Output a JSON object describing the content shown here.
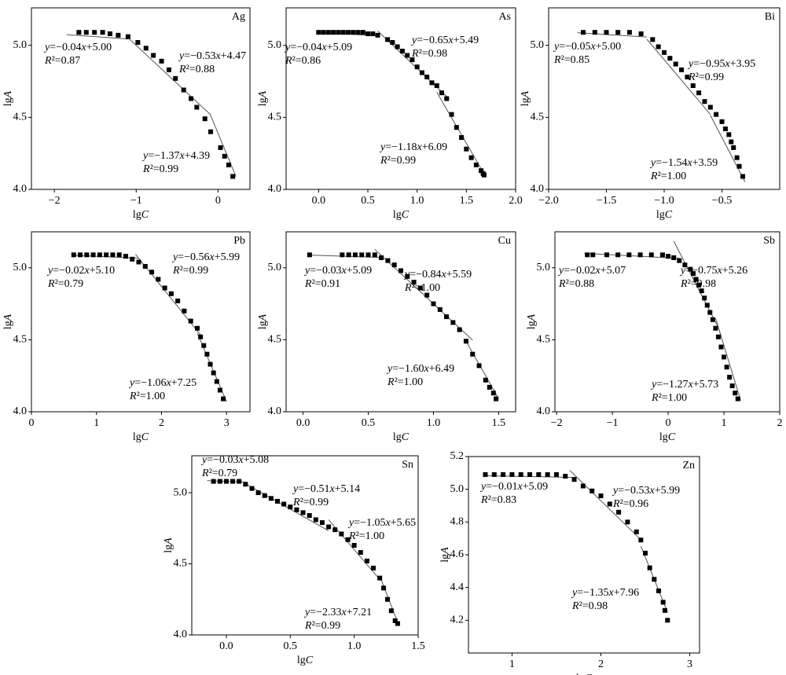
{
  "chart_data": [
    {
      "type": "scatter",
      "title": "Ag",
      "x_label": "lgC",
      "y_label": "lgA",
      "xlim": [
        -2.28,
        0.39
      ],
      "ylim": [
        4.0,
        5.26
      ],
      "xticks": [
        {
          "value": -2,
          "label": "−2"
        },
        {
          "value": -1,
          "label": "−1"
        },
        0
      ],
      "yticks": [
        {
          "value": 4,
          "label": "4.0"
        },
        4.5,
        {
          "value": 5,
          "label": "5.0"
        }
      ],
      "color": "#000000",
      "x": [
        -1.7,
        -1.61,
        -1.51,
        -1.41,
        -1.32,
        -1.22,
        -1.1,
        -0.98,
        -0.88,
        -0.79,
        -0.69,
        -0.6,
        -0.52,
        -0.42,
        -0.33,
        -0.26,
        -0.16,
        -0.09,
        0.03,
        0.08,
        0.13,
        0.18
      ],
      "values": [
        5.09,
        5.09,
        5.09,
        5.09,
        5.08,
        5.07,
        5.06,
        5.02,
        4.98,
        4.93,
        4.89,
        4.83,
        4.77,
        4.69,
        4.63,
        4.57,
        4.49,
        4.4,
        4.29,
        4.23,
        4.17,
        4.09
      ],
      "fits": [
        {
          "label": "y=−0.04x+5.00",
          "r2_label": "R²=0.87",
          "slope": -0.04,
          "intercept": 5.0,
          "xrange": [
            -1.85,
            -1.1
          ]
        },
        {
          "label": "y=−0.53x+4.47",
          "r2_label": "R²=0.88",
          "slope": -0.53,
          "intercept": 4.47,
          "xrange": [
            -1.1,
            -0.1
          ]
        },
        {
          "label": "y=−1.37x+4.39",
          "r2_label": "R²=0.99",
          "slope": -1.37,
          "intercept": 4.39,
          "xrange": [
            -0.1,
            0.22
          ]
        }
      ]
    },
    {
      "type": "scatter",
      "title": "As",
      "x_label": "lgC",
      "y_label": "lgA",
      "xlim": [
        -0.33,
        2.0
      ],
      "ylim": [
        4.0,
        5.26
      ],
      "xticks": [
        {
          "value": 0,
          "label": "0.0"
        },
        0.5,
        {
          "value": 1,
          "label": "1.0"
        },
        1.5,
        {
          "value": 2,
          "label": "2.0"
        }
      ],
      "yticks": [
        {
          "value": 4,
          "label": "4.0"
        },
        4.5,
        {
          "value": 5,
          "label": "5.0"
        }
      ],
      "color": "#000000",
      "x": [
        0.0,
        0.05,
        0.1,
        0.15,
        0.2,
        0.25,
        0.3,
        0.35,
        0.4,
        0.45,
        0.5,
        0.55,
        0.6,
        0.7,
        0.75,
        0.8,
        0.85,
        0.9,
        0.95,
        1.0,
        1.05,
        1.1,
        1.15,
        1.2,
        1.25,
        1.3,
        1.35,
        1.4,
        1.45,
        1.5,
        1.55,
        1.6,
        1.65,
        1.67,
        1.68
      ],
      "values": [
        5.09,
        5.09,
        5.09,
        5.09,
        5.09,
        5.09,
        5.09,
        5.09,
        5.09,
        5.09,
        5.08,
        5.08,
        5.07,
        5.04,
        5.02,
        4.99,
        4.96,
        4.93,
        4.9,
        4.85,
        4.81,
        4.78,
        4.74,
        4.72,
        4.67,
        4.63,
        4.52,
        4.43,
        4.36,
        4.28,
        4.22,
        4.17,
        4.13,
        4.11,
        4.1
      ],
      "fits": [
        {
          "label": "y=−0.04x+5.09",
          "r2_label": "R²=0.86",
          "slope": -0.04,
          "intercept": 5.09,
          "xrange": [
            0,
            0.6
          ]
        },
        {
          "label": "y=−0.65x+5.49",
          "r2_label": "R²=0.98",
          "slope": -0.65,
          "intercept": 5.49,
          "xrange": [
            0.6,
            1.3
          ]
        },
        {
          "label": "y=−1.18x+6.09",
          "r2_label": "R²=0.99",
          "slope": -1.18,
          "intercept": 6.09,
          "xrange": [
            1.2,
            1.7
          ]
        }
      ]
    },
    {
      "type": "scatter",
      "title": "Bi",
      "x_label": "lgC",
      "y_label": "lgA",
      "xlim": [
        -2.0,
        0.0
      ],
      "ylim": [
        4.0,
        5.26
      ],
      "xticks": [
        {
          "value": -2,
          "label": "−2.0"
        },
        {
          "value": -1.5,
          "label": "−1.5"
        },
        {
          "value": -1,
          "label": "−1.0"
        },
        {
          "value": -0.5,
          "label": "−0.5"
        }
      ],
      "yticks": [
        {
          "value": 4,
          "label": "4.0"
        },
        4.5,
        {
          "value": 5,
          "label": "5.0"
        }
      ],
      "color": "#000000",
      "x": [
        -1.7,
        -1.6,
        -1.5,
        -1.4,
        -1.3,
        -1.2,
        -1.1,
        -1.05,
        -1.0,
        -0.95,
        -0.9,
        -0.85,
        -0.8,
        -0.75,
        -0.7,
        -0.65,
        -0.6,
        -0.55,
        -0.5,
        -0.47,
        -0.44,
        -0.42,
        -0.4,
        -0.37,
        -0.35,
        -0.32
      ],
      "values": [
        5.09,
        5.09,
        5.09,
        5.09,
        5.09,
        5.08,
        5.04,
        4.99,
        4.95,
        4.91,
        4.87,
        4.83,
        4.78,
        4.72,
        4.67,
        4.61,
        4.57,
        4.52,
        4.47,
        4.42,
        4.38,
        4.33,
        4.29,
        4.22,
        4.16,
        4.09
      ],
      "fits": [
        {
          "label": "y=−0.05x+5.00",
          "r2_label": "R²=0.85",
          "slope": -0.05,
          "intercept": 5.0,
          "xrange": [
            -1.75,
            -1.15
          ]
        },
        {
          "label": "y=−0.95x+3.95",
          "r2_label": "R²=0.99",
          "slope": -0.95,
          "intercept": 3.95,
          "xrange": [
            -1.15,
            -0.6
          ]
        },
        {
          "label": "y=−1.54x+3.59",
          "r2_label": "R²=1.00",
          "slope": -1.54,
          "intercept": 3.59,
          "xrange": [
            -0.6,
            -0.3
          ]
        }
      ]
    },
    {
      "type": "scatter",
      "title": "Pb",
      "x_label": "lgC",
      "y_label": "lgA",
      "xlim": [
        0,
        3.36
      ],
      "ylim": [
        4.0,
        5.25
      ],
      "xticks": [
        0,
        1,
        2,
        3
      ],
      "yticks": [
        {
          "value": 4,
          "label": "4.0"
        },
        4.5,
        {
          "value": 5,
          "label": "5.0"
        }
      ],
      "color": "#000000",
      "x": [
        0.65,
        0.75,
        0.85,
        0.95,
        1.05,
        1.15,
        1.25,
        1.35,
        1.45,
        1.55,
        1.65,
        1.75,
        1.85,
        1.95,
        2.05,
        2.15,
        2.25,
        2.35,
        2.45,
        2.55,
        2.6,
        2.65,
        2.7,
        2.75,
        2.8,
        2.85,
        2.9,
        2.95
      ],
      "values": [
        5.09,
        5.09,
        5.09,
        5.09,
        5.09,
        5.09,
        5.09,
        5.09,
        5.08,
        5.06,
        5.04,
        5.01,
        4.97,
        4.92,
        4.86,
        4.82,
        4.77,
        4.7,
        4.63,
        4.58,
        4.52,
        4.46,
        4.4,
        4.33,
        4.27,
        4.21,
        4.15,
        4.09
      ],
      "fits": [
        {
          "label": "y=−0.02x+5.10",
          "r2_label": "R²=0.79",
          "slope": -0.02,
          "intercept": 5.1,
          "xrange": [
            0.65,
            1.65
          ]
        },
        {
          "label": "y=−0.56x+5.99",
          "r2_label": "R²=0.99",
          "slope": -0.56,
          "intercept": 5.99,
          "xrange": [
            1.6,
            2.6
          ]
        },
        {
          "label": "y=−1.06x+7.25",
          "r2_label": "R²=1.00",
          "slope": -1.06,
          "intercept": 7.25,
          "xrange": [
            2.55,
            3.0
          ]
        }
      ]
    },
    {
      "type": "scatter",
      "title": "Cu",
      "x_label": "lgC",
      "y_label": "lgA",
      "xlim": [
        -0.13,
        1.63
      ],
      "ylim": [
        4.0,
        5.25
      ],
      "xticks": [
        {
          "value": 0,
          "label": "0.0"
        },
        0.5,
        {
          "value": 1,
          "label": "1.0"
        },
        1.5
      ],
      "yticks": [
        {
          "value": 4,
          "label": "4.0"
        },
        4.5,
        {
          "value": 5,
          "label": "5.0"
        }
      ],
      "color": "#000000",
      "x": [
        0.05,
        0.3,
        0.35,
        0.4,
        0.45,
        0.5,
        0.55,
        0.6,
        0.65,
        0.7,
        0.75,
        0.8,
        0.85,
        0.9,
        0.95,
        1.0,
        1.05,
        1.1,
        1.15,
        1.2,
        1.25,
        1.3,
        1.35,
        1.4,
        1.43,
        1.46,
        1.48
      ],
      "values": [
        5.09,
        5.09,
        5.09,
        5.09,
        5.09,
        5.09,
        5.09,
        5.07,
        5.05,
        5.02,
        4.98,
        4.94,
        4.9,
        4.86,
        4.81,
        4.75,
        4.71,
        4.66,
        4.62,
        4.57,
        4.49,
        4.4,
        4.32,
        4.22,
        4.17,
        4.13,
        4.09
      ],
      "fits": [
        {
          "label": "y=−0.03x+5.09",
          "r2_label": "R²=0.91",
          "slope": -0.03,
          "intercept": 5.09,
          "xrange": [
            0.05,
            0.6
          ]
        },
        {
          "label": "y=−0.84x+5.59",
          "r2_label": "R²=1.00",
          "slope": -0.84,
          "intercept": 5.59,
          "xrange": [
            0.55,
            1.3
          ]
        },
        {
          "label": "y=−1.60x+6.49",
          "r2_label": "R²=1.00",
          "slope": -1.6,
          "intercept": 6.49,
          "xrange": [
            1.25,
            1.5
          ]
        }
      ]
    },
    {
      "type": "scatter",
      "title": "Sb",
      "x_label": "lgC",
      "y_label": "lgA",
      "xlim": [
        -2.03,
        2.0
      ],
      "ylim": [
        4.0,
        5.25
      ],
      "xticks": [
        {
          "value": -2,
          "label": "−2"
        },
        {
          "value": -1,
          "label": "−1"
        },
        0,
        1,
        2
      ],
      "yticks": [
        {
          "value": 4,
          "label": "4.0"
        },
        4.5,
        {
          "value": 5,
          "label": "5.0"
        }
      ],
      "color": "#000000",
      "x": [
        -1.45,
        -1.35,
        -1.1,
        -0.9,
        -0.7,
        -0.5,
        -0.3,
        -0.1,
        0.0,
        0.1,
        0.2,
        0.3,
        0.4,
        0.45,
        0.5,
        0.55,
        0.6,
        0.65,
        0.7,
        0.75,
        0.8,
        0.85,
        0.9,
        0.95,
        1.0,
        1.05,
        1.1,
        1.15,
        1.2,
        1.25
      ],
      "values": [
        5.09,
        5.09,
        5.09,
        5.09,
        5.09,
        5.09,
        5.09,
        5.09,
        5.08,
        5.07,
        5.05,
        5.02,
        4.99,
        4.96,
        4.92,
        4.88,
        4.84,
        4.79,
        4.74,
        4.69,
        4.64,
        4.58,
        4.52,
        4.45,
        4.38,
        4.31,
        4.24,
        4.18,
        4.13,
        4.09
      ],
      "fits": [
        {
          "label": "y=−0.02x+5.07",
          "r2_label": "R²=0.88",
          "slope": -0.02,
          "intercept": 5.07,
          "xrange": [
            -1.5,
            0.2
          ]
        },
        {
          "label": "y=−0.75x+5.26",
          "r2_label": "R²=0.98",
          "slope": -0.75,
          "intercept": 5.26,
          "xrange": [
            0.1,
            0.9
          ]
        },
        {
          "label": "y=−1.27x+5.73",
          "r2_label": "R²=1.00",
          "slope": -1.27,
          "intercept": 5.73,
          "xrange": [
            0.85,
            1.3
          ]
        }
      ]
    },
    {
      "type": "scatter",
      "title": "Sn",
      "x_label": "lgC",
      "y_label": "lgA",
      "xlim": [
        -0.27,
        1.5
      ],
      "ylim": [
        4.0,
        5.26
      ],
      "xticks": [
        {
          "value": 0,
          "label": "0.0"
        },
        0.5,
        {
          "value": 1,
          "label": "1.0"
        },
        1.5
      ],
      "yticks": [
        {
          "value": 4,
          "label": "4.0"
        },
        4.5,
        {
          "value": 5,
          "label": "5.0"
        }
      ],
      "color": "#000000",
      "x": [
        -0.1,
        -0.05,
        0.0,
        0.05,
        0.1,
        0.15,
        0.2,
        0.25,
        0.3,
        0.35,
        0.4,
        0.45,
        0.5,
        0.55,
        0.6,
        0.65,
        0.7,
        0.75,
        0.8,
        0.85,
        0.9,
        0.95,
        1.0,
        1.05,
        1.1,
        1.15,
        1.2,
        1.23,
        1.26,
        1.29,
        1.32,
        1.34
      ],
      "values": [
        5.08,
        5.08,
        5.08,
        5.08,
        5.08,
        5.06,
        5.03,
        5.0,
        4.98,
        4.96,
        4.94,
        4.92,
        4.9,
        4.88,
        4.86,
        4.84,
        4.81,
        4.79,
        4.76,
        4.74,
        4.71,
        4.67,
        4.63,
        4.58,
        4.52,
        4.47,
        4.4,
        4.33,
        4.25,
        4.17,
        4.1,
        4.08
      ],
      "fits": [
        {
          "label": "y=−0.03x+5.08",
          "r2_label": "R²=0.79",
          "slope": -0.03,
          "intercept": 5.08,
          "xrange": [
            -0.15,
            0.1
          ]
        },
        {
          "label": "y=−0.51x+5.14",
          "r2_label": "R²=0.99",
          "slope": -0.51,
          "intercept": 5.14,
          "xrange": [
            0.1,
            0.8
          ]
        },
        {
          "label": "y=−1.05x+5.65",
          "r2_label": "R²=1.00",
          "slope": -1.05,
          "intercept": 5.65,
          "xrange": [
            0.8,
            1.2
          ]
        },
        {
          "label": "y=−2.33x+7.21",
          "r2_label": "R²=0.99",
          "slope": -2.33,
          "intercept": 7.21,
          "xrange": [
            1.2,
            1.35
          ]
        }
      ]
    },
    {
      "type": "scatter",
      "title": "Zn",
      "x_label": "lgC",
      "y_label": "lgA",
      "xlim": [
        0.51,
        3.11
      ],
      "ylim": [
        4.0,
        5.2
      ],
      "xticks": [
        1,
        2,
        3
      ],
      "yticks": [
        4.2,
        4.4,
        4.6,
        4.8,
        {
          "value": 5,
          "label": "5.0"
        },
        5.2
      ],
      "color": "#000000",
      "x": [
        0.7,
        0.8,
        0.9,
        1.0,
        1.1,
        1.2,
        1.3,
        1.4,
        1.5,
        1.6,
        1.7,
        1.8,
        1.9,
        2.0,
        2.1,
        2.2,
        2.3,
        2.4,
        2.45,
        2.5,
        2.55,
        2.6,
        2.65,
        2.7,
        2.72,
        2.75
      ],
      "values": [
        5.09,
        5.09,
        5.09,
        5.09,
        5.09,
        5.09,
        5.09,
        5.09,
        5.09,
        5.08,
        5.06,
        5.02,
        4.99,
        4.96,
        4.91,
        4.86,
        4.8,
        4.74,
        4.69,
        4.61,
        4.52,
        4.45,
        4.38,
        4.31,
        4.26,
        4.2
      ],
      "fits": [
        {
          "label": "y=−0.01x+5.09",
          "r2_label": "R²=0.83",
          "slope": -0.01,
          "intercept": 5.09,
          "xrange": [
            0.7,
            1.7
          ]
        },
        {
          "label": "y=−0.53x+5.99",
          "r2_label": "R²=0.96",
          "slope": -0.53,
          "intercept": 5.99,
          "xrange": [
            1.65,
            2.45
          ]
        },
        {
          "label": "y=−1.35x+7.96",
          "r2_label": "R²=0.98",
          "slope": -1.35,
          "intercept": 7.96,
          "xrange": [
            2.45,
            2.75
          ]
        }
      ]
    }
  ]
}
